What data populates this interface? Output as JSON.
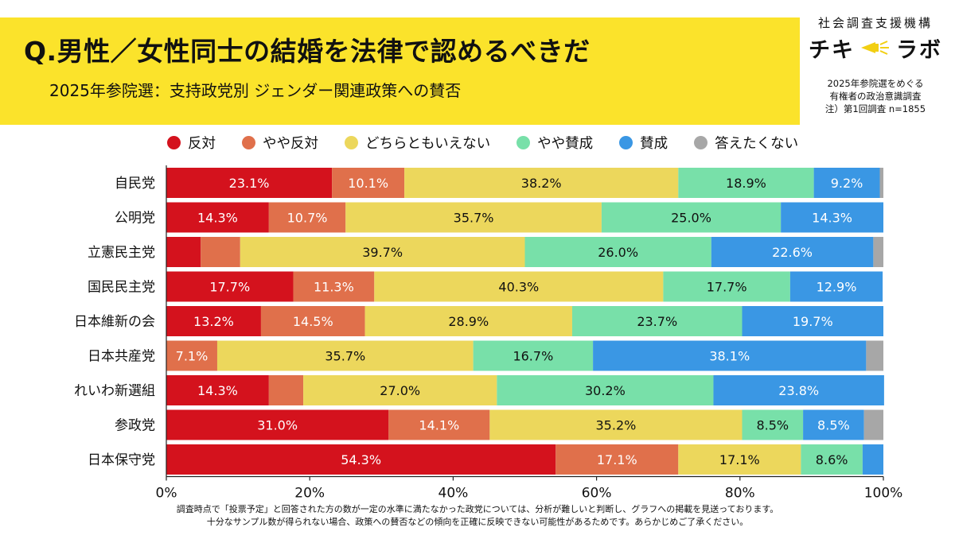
{
  "header": {
    "title": "Q.男性／女性同士の結婚を法律で認めるべきだ",
    "subtitle": "2025年参院選：支持政党別 ジェンダー関連政策への賛否"
  },
  "brand": {
    "org": "社会調査支援機構",
    "logo_left": "チキ",
    "logo_right": "ラボ"
  },
  "survey": {
    "line1": "2025年参院選をめぐる",
    "line2": "有権者の政治意識調査",
    "line3": "注）第1回調査 n=1855"
  },
  "footnote": {
    "line1": "調査時点で「投票予定」と回答された方の数が一定の水準に満たなかった政党については、分析が難しいと判断し、グラフへの掲載を見送っております。",
    "line2": "十分なサンプル数が得られない場合、政策への賛否などの傾向を正確に反映できない可能性があるためです。あらかじめご了承ください。"
  },
  "chart_data": {
    "type": "bar",
    "orientation": "horizontal",
    "stacked": true,
    "percent_stacked": true,
    "categories": [
      "自民党",
      "公明党",
      "立憲民主党",
      "国民民主党",
      "日本維新の会",
      "日本共産党",
      "れいわ新選組",
      "参政党",
      "日本保守党"
    ],
    "series": [
      {
        "name": "反対",
        "color": "#d4121d",
        "values": [
          23.1,
          14.3,
          4.8,
          17.7,
          13.2,
          0,
          14.3,
          31.0,
          54.3
        ]
      },
      {
        "name": "やや反対",
        "color": "#e0704b",
        "values": [
          10.1,
          10.7,
          5.5,
          11.3,
          14.5,
          7.1,
          4.8,
          14.1,
          17.1
        ]
      },
      {
        "name": "どちらともいえない",
        "color": "#ecd75c",
        "values": [
          38.2,
          35.7,
          39.7,
          40.3,
          28.9,
          35.7,
          27.0,
          35.2,
          17.1
        ]
      },
      {
        "name": "やや賛成",
        "color": "#78e0a9",
        "values": [
          18.9,
          25.0,
          26.0,
          17.7,
          23.7,
          16.7,
          30.2,
          8.5,
          8.6
        ]
      },
      {
        "name": "賛成",
        "color": "#3a97e4",
        "values": [
          9.2,
          14.3,
          22.6,
          12.9,
          19.7,
          38.1,
          23.8,
          8.5,
          2.9
        ]
      },
      {
        "name": "答えたくない",
        "color": "#a7a7a7",
        "values": [
          0.5,
          0,
          1.4,
          0,
          0,
          2.4,
          0,
          2.7,
          0
        ]
      }
    ],
    "label_min_value": 7,
    "x_ticks": [
      "0%",
      "20%",
      "40%",
      "60%",
      "80%",
      "100%"
    ],
    "xlim": [
      0,
      100
    ],
    "grid": false,
    "legend_position": "top"
  }
}
